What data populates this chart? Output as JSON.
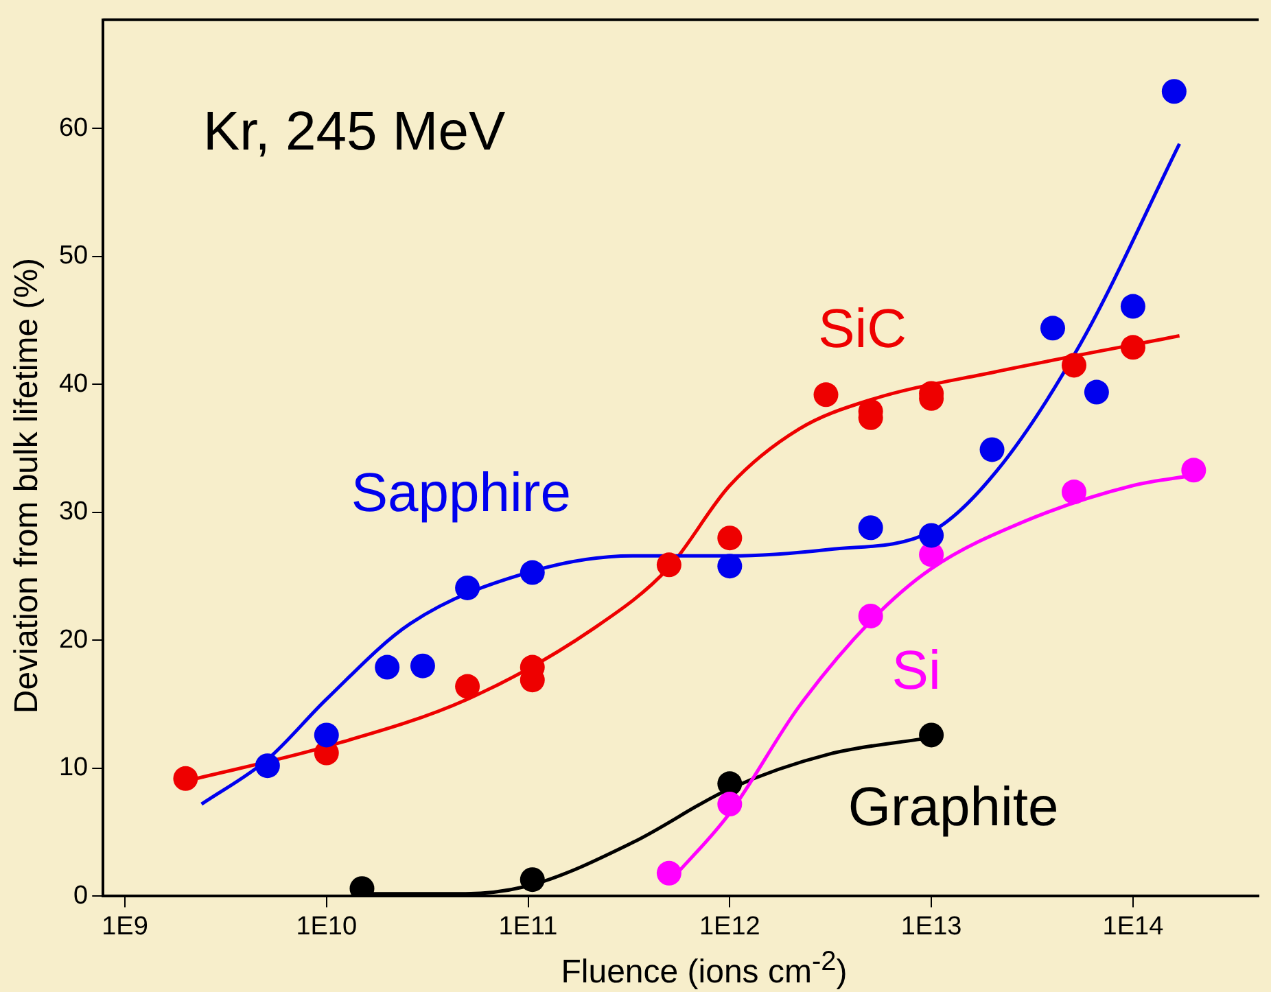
{
  "chart_data": {
    "type": "scatter",
    "xlabel": "Fluence (ions cm$^{-2}$)",
    "ylabel": "Deviation from bulk lifetime (%)",
    "annotations": [
      "Kr, 245 MeV"
    ],
    "log": "x",
    "grid": false,
    "legend": false,
    "marker": "circle",
    "xlim": [
      780000000.0,
      420000000000000.0
    ],
    "xticks": [
      {
        "value": 1000000000.0,
        "label": "1E9"
      },
      {
        "value": 10000000000.0,
        "label": "1E10"
      },
      {
        "value": 100000000000.0,
        "label": "1E11"
      },
      {
        "value": 1000000000000.0,
        "label": "1E12"
      },
      {
        "value": 10000000000000.0,
        "label": "1E13"
      },
      {
        "value": 100000000000000.0,
        "label": "1E14"
      }
    ],
    "ylim": [
      0,
      68.5
    ],
    "yticks": [
      0,
      10,
      20,
      30,
      40,
      50,
      60
    ],
    "series": [
      {
        "name": "Sapphire",
        "color": "#0000ee",
        "x": [
          5100000000.0,
          10000000000.0,
          20000000000.0,
          30000000000.0,
          50000000000.0,
          105000000000.0,
          1000000000000.0,
          5000000000000.0,
          10000000000000.0,
          20000000000000.0,
          40000000000000.0,
          66000000000000.0,
          100000000000000.0,
          160000000000000.0
        ],
        "values": [
          10.2,
          12.6,
          17.9,
          18.0,
          24.1,
          25.3,
          25.8,
          28.8,
          28.2,
          34.9,
          44.4,
          39.4,
          46.1,
          62.9
        ]
      },
      {
        "name": "SiC",
        "color": "#ee0000",
        "x": [
          2000000000.0,
          10000000000.0,
          50000000000.0,
          105000000000.0,
          105000000000.0,
          500000000000.0,
          1000000000000.0,
          3000000000000.0,
          5000000000000.0,
          5000000000000.0,
          10000000000000.0,
          10000000000000.0,
          51000000000000.0,
          100000000000000.0
        ],
        "values": [
          9.2,
          11.2,
          16.4,
          16.9,
          17.9,
          25.9,
          28.0,
          39.2,
          37.4,
          37.9,
          38.9,
          39.3,
          41.5,
          42.9
        ]
      },
      {
        "name": "Si",
        "color": "#ff00ff",
        "x": [
          500000000000.0,
          1000000000000.0,
          5000000000000.0,
          10000000000000.0,
          51000000000000.0,
          200000000000000.0
        ],
        "values": [
          1.8,
          7.2,
          21.9,
          26.7,
          31.6,
          33.3
        ]
      },
      {
        "name": "Graphite",
        "color": "#000000",
        "x": [
          15000000000.0,
          105000000000.0,
          1000000000000.0,
          10000000000000.0
        ],
        "values": [
          0.6,
          1.3,
          8.8,
          12.6
        ]
      },
      {
        "type": "line",
        "marker": "none",
        "color": "#0000ee",
        "x": [
          2400000000.0,
          5100000000.0,
          10000000000.0,
          26000000000.0,
          105000000000.0,
          330000000000.0,
          1000000000000.0,
          3100000000000.0,
          10000000000000.0,
          21000000000000.0,
          55000000000000.0,
          170000000000000.0
        ],
        "values": [
          7.2,
          10.7,
          15.4,
          21.3,
          25.4,
          26.6,
          26.6,
          27.1,
          28.5,
          33.2,
          43.2,
          58.8
        ]
      },
      {
        "type": "line",
        "marker": "none",
        "color": "#ee0000",
        "x": [
          2000000000.0,
          10000000000.0,
          50000000000.0,
          210000000000.0,
          500000000000.0,
          1000000000000.0,
          2200000000000.0,
          5000000000000.0,
          21000000000000.0,
          170000000000000.0
        ],
        "values": [
          9.0,
          11.7,
          15.4,
          20.9,
          25.7,
          32.1,
          36.5,
          38.8,
          41.0,
          43.8
        ]
      },
      {
        "type": "line",
        "marker": "none",
        "color": "#ff00ff",
        "x": [
          500000000000.0,
          1000000000000.0,
          2200000000000.0,
          5000000000000.0,
          10000000000000.0,
          29000000000000.0,
          100000000000000.0,
          200000000000000.0
        ],
        "values": [
          1.1,
          6.5,
          14.8,
          21.5,
          25.6,
          29.3,
          32.1,
          32.9
        ]
      },
      {
        "type": "line",
        "marker": "none",
        "color": "#000000",
        "x": [
          15000000000.0,
          49000000000.0,
          105000000000.0,
          330000000000.0,
          1000000000000.0,
          3100000000000.0,
          10000000000000.0
        ],
        "values": [
          0.2,
          0.2,
          0.9,
          4.2,
          8.4,
          11.1,
          12.4
        ]
      }
    ]
  }
}
